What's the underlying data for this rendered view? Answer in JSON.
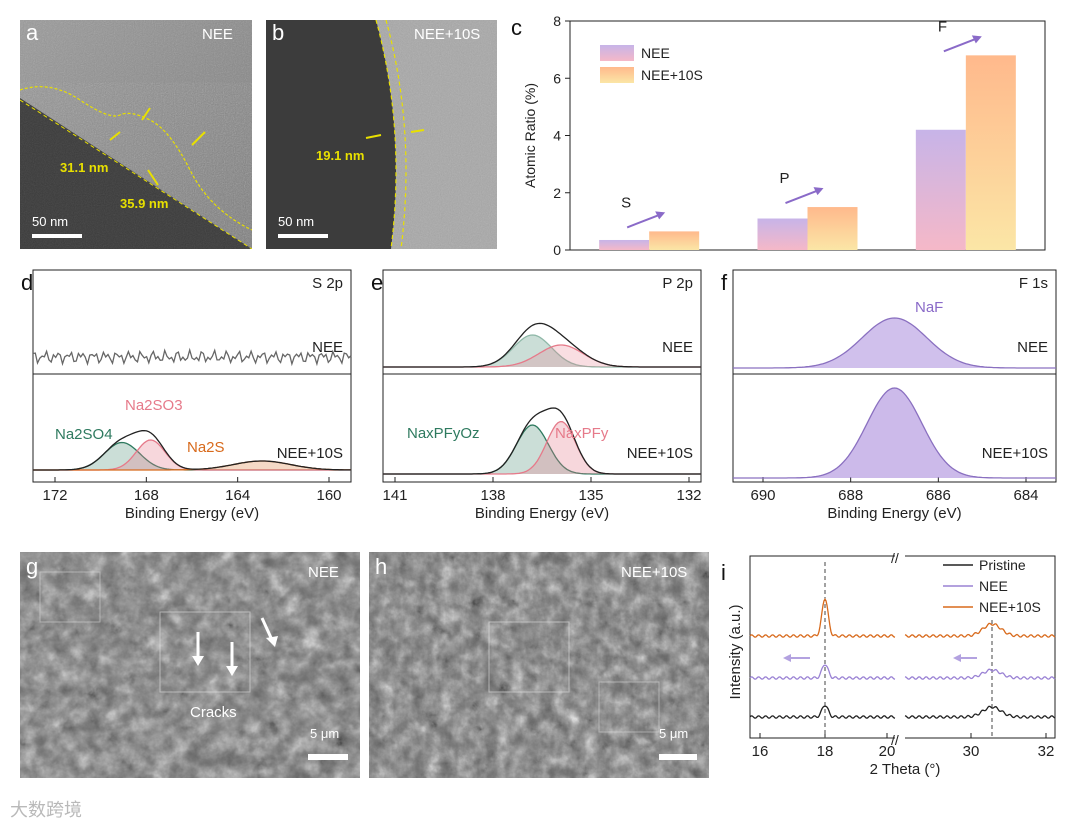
{
  "panels": {
    "a": {
      "letter": "a",
      "label": "NEE",
      "measure1": "31.1 nm",
      "measure2": "35.9 nm",
      "scale": "50 nm"
    },
    "b": {
      "letter": "b",
      "label": "NEE+10S",
      "measure1": "19.1 nm",
      "scale": "50 nm"
    },
    "d": {
      "letter": "d",
      "title": "S 2p",
      "top_label": "NEE",
      "bottom_label": "NEE+10S",
      "peak1": "Na2SO4",
      "peak2": "Na2SO3",
      "peak3": "Na2S",
      "xlabel": "Binding Energy (eV)",
      "ticks": [
        "172",
        "168",
        "164",
        "160"
      ]
    },
    "e": {
      "letter": "e",
      "title": "P 2p",
      "top_label": "NEE",
      "bottom_label": "NEE+10S",
      "peak1": "NaxPFyOz",
      "peak2": "NaxPFy",
      "xlabel": "Binding Energy (eV)",
      "ticks": [
        "141",
        "138",
        "135",
        "132"
      ]
    },
    "f": {
      "letter": "f",
      "title": "F 1s",
      "top_label": "NEE",
      "bottom_label": "NEE+10S",
      "peak1": "NaF",
      "xlabel": "Binding Energy (eV)",
      "ticks": [
        "690",
        "688",
        "686",
        "684"
      ]
    },
    "g": {
      "letter": "g",
      "label": "NEE",
      "cracks": "Cracks",
      "scale": "5 μm"
    },
    "h": {
      "letter": "h",
      "label": "NEE+10S",
      "scale": "5 μm"
    }
  },
  "watermark": "大数跨境",
  "colors": {
    "nee": "#c6b3e6",
    "nee10s": "#ffc48e",
    "purple": "#8a6ac8",
    "orange": "#d86a1c",
    "green": "#2e7a5f",
    "pink": "#e67a8a",
    "yellow": "#e8e000"
  },
  "chart_data": [
    {
      "id": "c",
      "type": "bar",
      "letter": "c",
      "categories": [
        "S",
        "P",
        "F"
      ],
      "series": [
        {
          "name": "NEE",
          "values": [
            0.35,
            1.1,
            4.2
          ]
        },
        {
          "name": "NEE+10S",
          "values": [
            0.65,
            1.5,
            6.8
          ]
        }
      ],
      "ylabel": "Atomic Ratio (%)",
      "ylim": [
        0,
        8
      ],
      "yticks": [
        "0",
        "2",
        "4",
        "6",
        "8"
      ]
    },
    {
      "id": "i",
      "type": "line",
      "letter": "i",
      "series": [
        {
          "name": "Pristine"
        },
        {
          "name": "NEE"
        },
        {
          "name": "NEE+10S"
        }
      ],
      "peaks_deg": [
        18.2,
        30.6
      ],
      "xlabel": "2 Theta (°)",
      "ylabel": "Intensity (a.u.)",
      "xticks": [
        "16",
        "18",
        "20",
        "30",
        "32"
      ]
    }
  ]
}
